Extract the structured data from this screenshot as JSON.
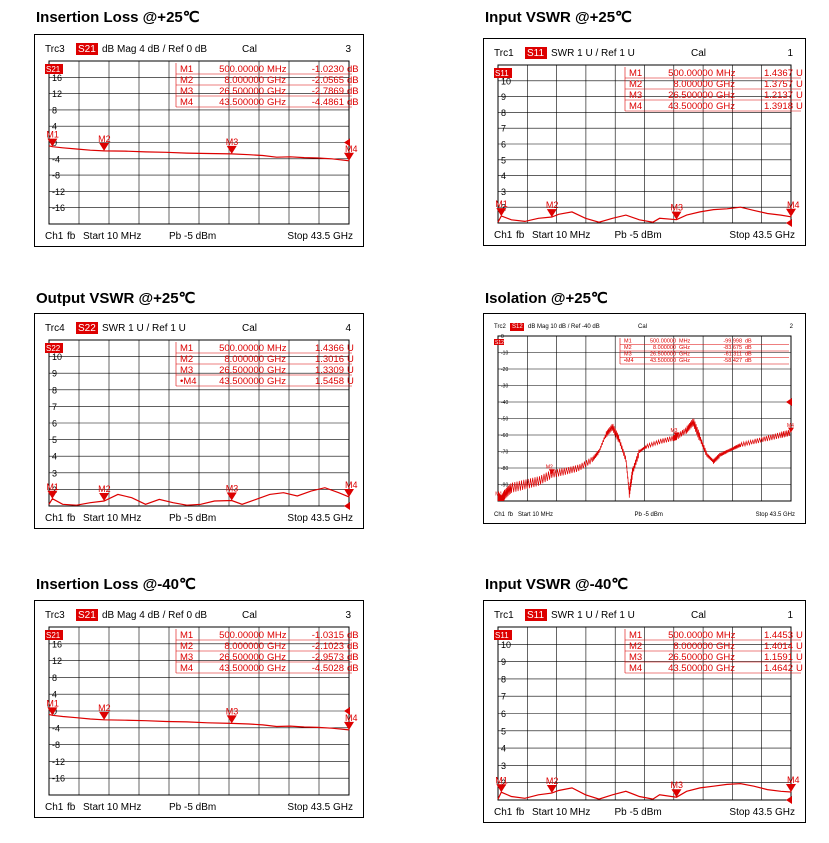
{
  "section_titles": {
    "p1": "Insertion Loss @+25℃",
    "p2": "Input VSWR @+25℃",
    "p3": "Output VSWR @+25℃",
    "p4": "Isolation @+25℃",
    "p5": "Insertion Loss @-40℃",
    "p6": "Input VSWR @-40℃"
  },
  "colors": {
    "trace": "#dd0000",
    "grid": "#000000",
    "badge": "#dd0000",
    "text": "#000000"
  },
  "chart_data": [
    {
      "id": "p1",
      "type": "line",
      "header": {
        "trace_label": "Trc3",
        "param": "S21",
        "format": "dB Mag",
        "scale": "4 dB /",
        "ref": "Ref 0 dB",
        "cal": "Cal",
        "index": "3"
      },
      "badge": "S21",
      "ylim": [
        -20,
        20
      ],
      "ytick_labels": [
        "16",
        "12",
        "8",
        "4",
        "0",
        "-4",
        "-8",
        "-12",
        "-16"
      ],
      "ytick_values": [
        16,
        12,
        8,
        4,
        0,
        -4,
        -8,
        -12,
        -16
      ],
      "xlim": [
        0.01,
        43.5
      ],
      "xunit": "GHz",
      "footer": {
        "channel": "Ch1",
        "fb": "fb",
        "start": "Start  10 MHz",
        "power": "Pb  -5 dBm",
        "stop": "Stop  43.5 GHz"
      },
      "marker_table": [
        [
          "M1",
          "500.00000",
          "MHz",
          "-1.0230",
          "dB"
        ],
        [
          "M2",
          "8.000000",
          "GHz",
          "-2.0565",
          "dB"
        ],
        [
          "M3",
          "26.500000",
          "GHz",
          "-2.7869",
          "dB"
        ],
        [
          "M4",
          "43.500000",
          "GHz",
          "-4.4861",
          "dB"
        ]
      ],
      "markers": [
        {
          "label": "M1",
          "x": 0.5,
          "y": -1.023
        },
        {
          "label": "M2",
          "x": 8.0,
          "y": -2.0565
        },
        {
          "label": "M3",
          "x": 26.5,
          "y": -2.7869
        },
        {
          "label": "M4",
          "x": 43.5,
          "y": -4.4861
        }
      ],
      "series": [
        {
          "x": [
            0.01,
            0.5,
            2,
            4,
            6,
            8,
            11,
            14,
            17,
            20,
            23,
            26.5,
            29,
            31,
            33,
            35,
            37,
            39,
            41,
            43.5
          ],
          "y": [
            -0.8,
            -1.02,
            -1.3,
            -1.6,
            -1.9,
            -2.06,
            -2.1,
            -2.3,
            -2.4,
            -2.6,
            -2.7,
            -2.79,
            -3.0,
            -3.2,
            -3.6,
            -3.5,
            -3.7,
            -3.8,
            -4.0,
            -4.49
          ]
        }
      ]
    },
    {
      "id": "p2",
      "type": "line",
      "header": {
        "trace_label": "Trc1",
        "param": "S11",
        "format": "SWR",
        "scale": "1 U /",
        "ref": "Ref 1 U",
        "cal": "Cal",
        "index": "1"
      },
      "badge": "S11",
      "ylim": [
        1,
        11
      ],
      "ytick_labels": [
        "10",
        "9",
        "8",
        "7",
        "6",
        "5",
        "4",
        "3",
        "2"
      ],
      "ytick_values": [
        10,
        9,
        8,
        7,
        6,
        5,
        4,
        3,
        2
      ],
      "xlim": [
        0.01,
        43.5
      ],
      "xunit": "GHz",
      "footer": {
        "channel": "Ch1",
        "fb": "fb",
        "start": "Start  10 MHz",
        "power": "Pb  -5 dBm",
        "stop": "Stop  43.5 GHz"
      },
      "marker_table": [
        [
          "M1",
          "500.00000",
          "MHz",
          "1.4367",
          "U"
        ],
        [
          "M2",
          "8.000000",
          "GHz",
          "1.3757",
          "U"
        ],
        [
          "M3",
          "26.500000",
          "GHz",
          "1.2137",
          "U"
        ],
        [
          "M4",
          "43.500000",
          "GHz",
          "1.3918",
          "U"
        ]
      ],
      "markers": [
        {
          "label": "M1",
          "x": 0.5,
          "y": 1.4367
        },
        {
          "label": "M2",
          "x": 8.0,
          "y": 1.3757
        },
        {
          "label": "M3",
          "x": 26.5,
          "y": 1.2137
        },
        {
          "label": "M4",
          "x": 43.5,
          "y": 1.3918
        }
      ],
      "series": [
        {
          "x": [
            0.01,
            0.5,
            2,
            4,
            6,
            8,
            9,
            11,
            13,
            15,
            17,
            19,
            21,
            23,
            24,
            26.5,
            28,
            30,
            32,
            34,
            36,
            38,
            40,
            42,
            43.5
          ],
          "y": [
            1.05,
            1.44,
            1.2,
            1.1,
            1.3,
            1.38,
            1.55,
            1.7,
            1.3,
            1.05,
            1.3,
            1.5,
            1.2,
            1.05,
            1.3,
            1.21,
            1.5,
            1.7,
            1.85,
            1.9,
            2.0,
            1.8,
            1.6,
            1.5,
            1.39
          ]
        }
      ]
    },
    {
      "id": "p3",
      "type": "line",
      "header": {
        "trace_label": "Trc4",
        "param": "S22",
        "format": "SWR",
        "scale": "1 U /",
        "ref": "Ref 1 U",
        "cal": "Cal",
        "index": "4"
      },
      "badge": "S22",
      "ylim": [
        1,
        11
      ],
      "ytick_labels": [
        "10",
        "9",
        "8",
        "7",
        "6",
        "5",
        "4",
        "3",
        "2"
      ],
      "ytick_values": [
        10,
        9,
        8,
        7,
        6,
        5,
        4,
        3,
        2
      ],
      "xlim": [
        0.01,
        43.5
      ],
      "xunit": "GHz",
      "footer": {
        "channel": "Ch1",
        "fb": "fb",
        "start": "Start  10 MHz",
        "power": "Pb  -5 dBm",
        "stop": "Stop  43.5 GHz"
      },
      "marker_table": [
        [
          "M1",
          "500.00000",
          "MHz",
          "1.4366",
          "U"
        ],
        [
          "M2",
          "8.000000",
          "GHz",
          "1.3016",
          "U"
        ],
        [
          "M3",
          "26.500000",
          "GHz",
          "1.3309",
          "U"
        ],
        [
          "•M4",
          "43.500000",
          "GHz",
          "1.5458",
          "U"
        ]
      ],
      "markers": [
        {
          "label": "M1",
          "x": 0.5,
          "y": 1.4366
        },
        {
          "label": "M2",
          "x": 8.0,
          "y": 1.3016
        },
        {
          "label": "M3",
          "x": 26.5,
          "y": 1.3309
        },
        {
          "label": "M4",
          "x": 43.5,
          "y": 1.5458
        }
      ],
      "series": [
        {
          "x": [
            0.01,
            0.5,
            2,
            4,
            6,
            8,
            10,
            12,
            14,
            16,
            18,
            20,
            22,
            24,
            26.5,
            28,
            30,
            32,
            34,
            36,
            38,
            40,
            42,
            43.5
          ],
          "y": [
            1.1,
            1.44,
            1.1,
            1.05,
            1.2,
            1.3,
            1.7,
            1.5,
            1.1,
            1.4,
            1.2,
            1.05,
            1.1,
            1.3,
            1.33,
            1.1,
            1.4,
            1.7,
            1.8,
            1.6,
            1.9,
            2.1,
            1.8,
            1.55
          ]
        }
      ]
    },
    {
      "id": "p4",
      "type": "line",
      "header": {
        "trace_label": "Trc2",
        "param": "S12",
        "format": "dB Mag",
        "scale": "10 dB /",
        "ref": "Ref -40 dB",
        "cal": "Cal",
        "index": "2"
      },
      "badge": "S12",
      "ylim": [
        -100,
        0
      ],
      "ytick_labels": [
        "0",
        "-10",
        "-20",
        "-30",
        "-40",
        "-50",
        "-60",
        "-70",
        "-80",
        "-90"
      ],
      "ytick_values": [
        0,
        -10,
        -20,
        -30,
        -40,
        -50,
        -60,
        -70,
        -80,
        -90
      ],
      "xlim": [
        0.01,
        43.5
      ],
      "xunit": "GHz",
      "footer": {
        "channel": "Ch1",
        "fb": "fb",
        "start": "Start  10 MHz",
        "power": "Pb  -5 dBm",
        "stop": "Stop  43.5 GHz"
      },
      "marker_table": [
        [
          "M1",
          "500.00000",
          "MHz",
          "-99.998",
          "dB"
        ],
        [
          "M2",
          "8.000000",
          "GHz",
          "-83.675",
          "dB"
        ],
        [
          "M3",
          "26.500000",
          "GHz",
          "-61.311",
          "dB"
        ],
        [
          "•M4",
          "43.500000",
          "GHz",
          "-58.427",
          "dB"
        ]
      ],
      "markers": [
        {
          "label": "M1",
          "x": 0.5,
          "y": -99.998
        },
        {
          "label": "M2",
          "x": 8.0,
          "y": -83.675
        },
        {
          "label": "M3",
          "x": 26.5,
          "y": -61.311
        },
        {
          "label": "M4",
          "x": 43.5,
          "y": -58.427
        }
      ],
      "series": [
        {
          "x": [
            0.01,
            0.5,
            1,
            2,
            4,
            6,
            8,
            10,
            12,
            14,
            15,
            16,
            17,
            18,
            19,
            19.5,
            20,
            21,
            22,
            24,
            26,
            26.5,
            28,
            29,
            30,
            31,
            32,
            33,
            34,
            35,
            36,
            38,
            40,
            42,
            43.5
          ],
          "y": [
            -97,
            -99.998,
            -96,
            -92,
            -90,
            -88,
            -83.675,
            -82,
            -80,
            -75,
            -70,
            -60,
            -55,
            -63,
            -75,
            -95,
            -82,
            -70,
            -67,
            -64,
            -62,
            -61.311,
            -57,
            -52,
            -62,
            -72,
            -76,
            -72,
            -70,
            -68,
            -66,
            -64,
            -62,
            -60,
            -58.427
          ]
        }
      ]
    },
    {
      "id": "p5",
      "type": "line",
      "header": {
        "trace_label": "Trc3",
        "param": "S21",
        "format": "dB Mag",
        "scale": "4 dB /",
        "ref": "Ref 0 dB",
        "cal": "Cal",
        "index": "3"
      },
      "badge": "S21",
      "ylim": [
        -20,
        20
      ],
      "ytick_labels": [
        "16",
        "12",
        "8",
        "4",
        "0",
        "-4",
        "-8",
        "-12",
        "-16"
      ],
      "ytick_values": [
        16,
        12,
        8,
        4,
        0,
        -4,
        -8,
        -12,
        -16
      ],
      "xlim": [
        0.01,
        43.5
      ],
      "xunit": "GHz",
      "footer": {
        "channel": "Ch1",
        "fb": "fb",
        "start": "Start  10 MHz",
        "power": "Pb  -5 dBm",
        "stop": "Stop  43.5 GHz"
      },
      "marker_table": [
        [
          "M1",
          "500.00000",
          "MHz",
          "-1.0315",
          "dB"
        ],
        [
          "M2",
          "8.000000",
          "GHz",
          "-2.1023",
          "dB"
        ],
        [
          "M3",
          "26.500000",
          "GHz",
          "-2.9573",
          "dB"
        ],
        [
          "M4",
          "43.500000",
          "GHz",
          "-4.5028",
          "dB"
        ]
      ],
      "markers": [
        {
          "label": "M1",
          "x": 0.5,
          "y": -1.0315
        },
        {
          "label": "M2",
          "x": 8.0,
          "y": -2.1023
        },
        {
          "label": "M3",
          "x": 26.5,
          "y": -2.9573
        },
        {
          "label": "M4",
          "x": 43.5,
          "y": -4.5028
        }
      ],
      "series": [
        {
          "x": [
            0.01,
            0.5,
            2,
            4,
            6,
            8,
            11,
            14,
            17,
            20,
            23,
            26.5,
            29,
            31,
            33,
            35,
            37,
            39,
            41,
            43.5
          ],
          "y": [
            -0.8,
            -1.03,
            -1.3,
            -1.6,
            -1.9,
            -2.1,
            -2.2,
            -2.3,
            -2.5,
            -2.6,
            -2.8,
            -2.96,
            -3.1,
            -3.3,
            -3.7,
            -3.6,
            -3.8,
            -3.9,
            -4.1,
            -4.5
          ]
        }
      ]
    },
    {
      "id": "p6",
      "type": "line",
      "header": {
        "trace_label": "Trc1",
        "param": "S11",
        "format": "SWR",
        "scale": "1 U /",
        "ref": "Ref 1 U",
        "cal": "Cal",
        "index": "1"
      },
      "badge": "S11",
      "ylim": [
        1,
        11
      ],
      "ytick_labels": [
        "10",
        "9",
        "8",
        "7",
        "6",
        "5",
        "4",
        "3",
        "2"
      ],
      "ytick_values": [
        10,
        9,
        8,
        7,
        6,
        5,
        4,
        3,
        2
      ],
      "xlim": [
        0.01,
        43.5
      ],
      "xunit": "GHz",
      "footer": {
        "channel": "Ch1",
        "fb": "fb",
        "start": "Start  10 MHz",
        "power": "Pb  -5 dBm",
        "stop": "Stop  43.5 GHz"
      },
      "marker_table": [
        [
          "M1",
          "500.00000",
          "MHz",
          "1.4453",
          "U"
        ],
        [
          "M2",
          "8.000000",
          "GHz",
          "1.4014",
          "U"
        ],
        [
          "M3",
          "26.500000",
          "GHz",
          "1.1591",
          "U"
        ],
        [
          "M4",
          "43.500000",
          "GHz",
          "1.4642",
          "U"
        ]
      ],
      "markers": [
        {
          "label": "M1",
          "x": 0.5,
          "y": 1.4453
        },
        {
          "label": "M2",
          "x": 8.0,
          "y": 1.4014
        },
        {
          "label": "M3",
          "x": 26.5,
          "y": 1.1591
        },
        {
          "label": "M4",
          "x": 43.5,
          "y": 1.4642
        }
      ],
      "series": [
        {
          "x": [
            0.01,
            0.5,
            2,
            4,
            6,
            8,
            9,
            11,
            13,
            15,
            17,
            19,
            21,
            23,
            24,
            26.5,
            28,
            30,
            32,
            34,
            36,
            38,
            40,
            42,
            43.5
          ],
          "y": [
            1.05,
            1.45,
            1.2,
            1.1,
            1.3,
            1.4,
            1.55,
            1.7,
            1.3,
            1.05,
            1.3,
            1.5,
            1.2,
            1.05,
            1.3,
            1.16,
            1.5,
            1.7,
            1.8,
            1.9,
            1.95,
            1.8,
            1.6,
            1.5,
            1.46
          ]
        }
      ]
    }
  ]
}
